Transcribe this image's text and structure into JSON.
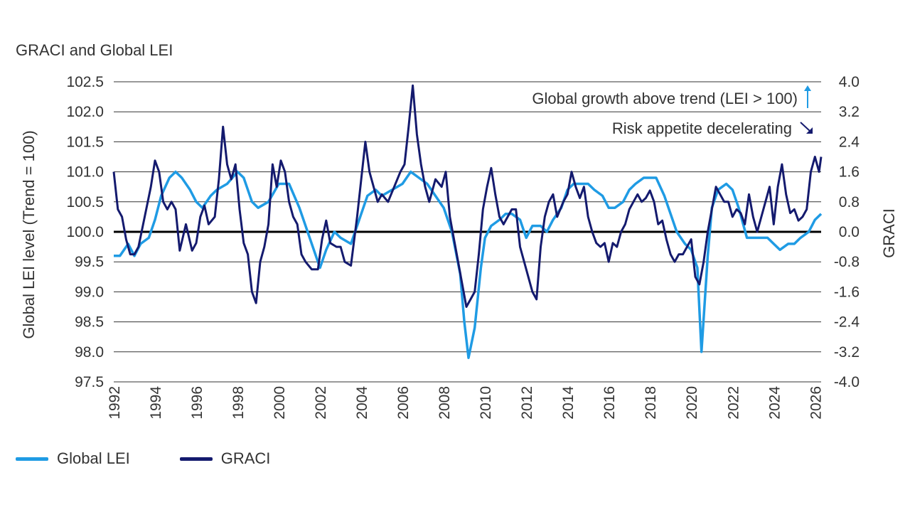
{
  "colors": {
    "lei": "#1f9be4",
    "graci": "#141a6e",
    "grid": "#333333",
    "zero": "#000000"
  },
  "chart_data": {
    "type": "line",
    "title": "GRACI and Global LEI",
    "ylabel_left": "Global LEI level  (Trend = 100)",
    "ylabel_right": "GRACI",
    "xlim": [
      1992,
      2026.3
    ],
    "ylim_left": [
      97.5,
      102.5
    ],
    "ylim_right": [
      -4.0,
      4.0
    ],
    "x_ticks": [
      "1992",
      "1994",
      "1996",
      "1998",
      "2000",
      "2002",
      "2004",
      "2006",
      "2008",
      "2010",
      "2012",
      "2014",
      "2016",
      "2018",
      "2020",
      "2022",
      "2024",
      "2026"
    ],
    "y_ticks_left": [
      "97.5",
      "98.0",
      "98.5",
      "99.0",
      "99.5",
      "100.0",
      "100.5",
      "101.0",
      "101.5",
      "102.0",
      "102.5"
    ],
    "y_ticks_right": [
      "-4.0",
      "-3.2",
      "-2.4",
      "-1.6",
      "-0.8",
      "0.0",
      "0.8",
      "1.6",
      "2.4",
      "3.2",
      "4.0"
    ],
    "annotations": [
      {
        "text": "Global growth above trend (LEI > 100)",
        "arrow": "up",
        "color": "#1f9be4"
      },
      {
        "text": "Risk appetite decelerating",
        "arrow": "down-right",
        "color": "#141a6e"
      }
    ],
    "legend": "bottom-left",
    "series": [
      {
        "name": "Global LEI",
        "axis": "left",
        "points": [
          [
            1992.0,
            99.6
          ],
          [
            1992.3,
            99.6
          ],
          [
            1992.7,
            99.8
          ],
          [
            1993.0,
            99.6
          ],
          [
            1993.3,
            99.8
          ],
          [
            1993.7,
            99.9
          ],
          [
            1994.0,
            100.2
          ],
          [
            1994.3,
            100.6
          ],
          [
            1994.7,
            100.9
          ],
          [
            1995.0,
            101.0
          ],
          [
            1995.3,
            100.9
          ],
          [
            1995.7,
            100.7
          ],
          [
            1996.0,
            100.5
          ],
          [
            1996.3,
            100.4
          ],
          [
            1996.7,
            100.6
          ],
          [
            1997.0,
            100.7
          ],
          [
            1997.5,
            100.8
          ],
          [
            1998.0,
            101.0
          ],
          [
            1998.3,
            100.9
          ],
          [
            1998.7,
            100.5
          ],
          [
            1999.0,
            100.4
          ],
          [
            1999.5,
            100.5
          ],
          [
            2000.0,
            100.8
          ],
          [
            2000.5,
            100.8
          ],
          [
            2001.0,
            100.4
          ],
          [
            2001.5,
            99.9
          ],
          [
            2002.0,
            99.4
          ],
          [
            2002.3,
            99.7
          ],
          [
            2002.7,
            100.0
          ],
          [
            2003.0,
            99.9
          ],
          [
            2003.5,
            99.8
          ],
          [
            2004.0,
            100.3
          ],
          [
            2004.3,
            100.6
          ],
          [
            2004.7,
            100.7
          ],
          [
            2005.0,
            100.6
          ],
          [
            2005.5,
            100.7
          ],
          [
            2006.0,
            100.8
          ],
          [
            2006.4,
            101.0
          ],
          [
            2006.8,
            100.9
          ],
          [
            2007.2,
            100.8
          ],
          [
            2007.6,
            100.6
          ],
          [
            2008.0,
            100.4
          ],
          [
            2008.4,
            100.0
          ],
          [
            2008.8,
            99.3
          ],
          [
            2009.0,
            98.5
          ],
          [
            2009.2,
            97.9
          ],
          [
            2009.5,
            98.4
          ],
          [
            2009.8,
            99.4
          ],
          [
            2010.0,
            99.9
          ],
          [
            2010.3,
            100.1
          ],
          [
            2010.7,
            100.2
          ],
          [
            2011.0,
            100.3
          ],
          [
            2011.3,
            100.3
          ],
          [
            2011.7,
            100.2
          ],
          [
            2012.0,
            99.9
          ],
          [
            2012.3,
            100.1
          ],
          [
            2012.7,
            100.1
          ],
          [
            2013.0,
            100.0
          ],
          [
            2013.3,
            100.2
          ],
          [
            2013.7,
            100.4
          ],
          [
            2014.0,
            100.7
          ],
          [
            2014.3,
            100.8
          ],
          [
            2014.7,
            100.8
          ],
          [
            2015.0,
            100.8
          ],
          [
            2015.3,
            100.7
          ],
          [
            2015.7,
            100.6
          ],
          [
            2016.0,
            100.4
          ],
          [
            2016.3,
            100.4
          ],
          [
            2016.7,
            100.5
          ],
          [
            2017.0,
            100.7
          ],
          [
            2017.3,
            100.8
          ],
          [
            2017.7,
            100.9
          ],
          [
            2018.0,
            100.9
          ],
          [
            2018.3,
            100.9
          ],
          [
            2018.7,
            100.6
          ],
          [
            2019.0,
            100.3
          ],
          [
            2019.3,
            100.0
          ],
          [
            2019.7,
            99.8
          ],
          [
            2020.0,
            99.7
          ],
          [
            2020.3,
            99.4
          ],
          [
            2020.5,
            98.0
          ],
          [
            2020.8,
            99.6
          ],
          [
            2021.0,
            100.4
          ],
          [
            2021.3,
            100.7
          ],
          [
            2021.7,
            100.8
          ],
          [
            2022.0,
            100.7
          ],
          [
            2022.3,
            100.4
          ],
          [
            2022.7,
            99.9
          ],
          [
            2023.0,
            99.9
          ],
          [
            2023.3,
            99.9
          ],
          [
            2023.7,
            99.9
          ],
          [
            2024.0,
            99.8
          ],
          [
            2024.3,
            99.7
          ],
          [
            2024.7,
            99.8
          ],
          [
            2025.0,
            99.8
          ],
          [
            2025.3,
            99.9
          ],
          [
            2025.7,
            100.0
          ],
          [
            2026.0,
            100.2
          ],
          [
            2026.3,
            100.3
          ]
        ]
      },
      {
        "name": "GRACI",
        "axis": "right",
        "points": [
          [
            1992.0,
            1.6
          ],
          [
            1992.2,
            0.6
          ],
          [
            1992.4,
            0.4
          ],
          [
            1992.6,
            -0.2
          ],
          [
            1992.8,
            -0.6
          ],
          [
            1993.0,
            -0.6
          ],
          [
            1993.2,
            -0.4
          ],
          [
            1993.5,
            0.4
          ],
          [
            1993.8,
            1.2
          ],
          [
            1994.0,
            1.9
          ],
          [
            1994.2,
            1.6
          ],
          [
            1994.4,
            0.8
          ],
          [
            1994.6,
            0.6
          ],
          [
            1994.8,
            0.8
          ],
          [
            1995.0,
            0.6
          ],
          [
            1995.2,
            -0.5
          ],
          [
            1995.5,
            0.2
          ],
          [
            1995.8,
            -0.5
          ],
          [
            1996.0,
            -0.3
          ],
          [
            1996.2,
            0.4
          ],
          [
            1996.4,
            0.7
          ],
          [
            1996.6,
            0.2
          ],
          [
            1996.9,
            0.4
          ],
          [
            1997.1,
            1.4
          ],
          [
            1997.3,
            2.8
          ],
          [
            1997.5,
            1.8
          ],
          [
            1997.7,
            1.4
          ],
          [
            1997.9,
            1.8
          ],
          [
            1998.1,
            0.6
          ],
          [
            1998.3,
            -0.3
          ],
          [
            1998.5,
            -0.6
          ],
          [
            1998.7,
            -1.6
          ],
          [
            1998.9,
            -1.9
          ],
          [
            1999.1,
            -0.8
          ],
          [
            1999.3,
            -0.4
          ],
          [
            1999.5,
            0.2
          ],
          [
            1999.7,
            1.8
          ],
          [
            1999.9,
            1.2
          ],
          [
            2000.1,
            1.9
          ],
          [
            2000.3,
            1.6
          ],
          [
            2000.5,
            0.8
          ],
          [
            2000.7,
            0.4
          ],
          [
            2000.9,
            0.2
          ],
          [
            2001.1,
            -0.6
          ],
          [
            2001.3,
            -0.8
          ],
          [
            2001.6,
            -1.0
          ],
          [
            2001.9,
            -1.0
          ],
          [
            2002.1,
            -0.2
          ],
          [
            2002.3,
            0.3
          ],
          [
            2002.5,
            -0.3
          ],
          [
            2002.8,
            -0.4
          ],
          [
            2003.0,
            -0.4
          ],
          [
            2003.2,
            -0.8
          ],
          [
            2003.5,
            -0.9
          ],
          [
            2003.8,
            0.4
          ],
          [
            2004.0,
            1.4
          ],
          [
            2004.2,
            2.4
          ],
          [
            2004.4,
            1.6
          ],
          [
            2004.6,
            1.2
          ],
          [
            2004.8,
            0.8
          ],
          [
            2005.0,
            1.0
          ],
          [
            2005.3,
            0.8
          ],
          [
            2005.6,
            1.2
          ],
          [
            2005.9,
            1.6
          ],
          [
            2006.1,
            1.8
          ],
          [
            2006.3,
            2.8
          ],
          [
            2006.5,
            3.9
          ],
          [
            2006.7,
            2.6
          ],
          [
            2006.9,
            1.8
          ],
          [
            2007.1,
            1.2
          ],
          [
            2007.3,
            0.8
          ],
          [
            2007.6,
            1.4
          ],
          [
            2007.9,
            1.2
          ],
          [
            2008.1,
            1.6
          ],
          [
            2008.3,
            0.4
          ],
          [
            2008.5,
            -0.2
          ],
          [
            2008.7,
            -0.8
          ],
          [
            2008.9,
            -1.4
          ],
          [
            2009.1,
            -2.0
          ],
          [
            2009.3,
            -1.8
          ],
          [
            2009.5,
            -1.6
          ],
          [
            2009.7,
            -0.6
          ],
          [
            2009.9,
            0.6
          ],
          [
            2010.1,
            1.2
          ],
          [
            2010.3,
            1.7
          ],
          [
            2010.5,
            1.0
          ],
          [
            2010.7,
            0.4
          ],
          [
            2010.9,
            0.2
          ],
          [
            2011.1,
            0.4
          ],
          [
            2011.3,
            0.6
          ],
          [
            2011.5,
            0.6
          ],
          [
            2011.7,
            -0.4
          ],
          [
            2011.9,
            -0.8
          ],
          [
            2012.1,
            -1.2
          ],
          [
            2012.3,
            -1.6
          ],
          [
            2012.5,
            -1.8
          ],
          [
            2012.7,
            -0.4
          ],
          [
            2012.9,
            0.4
          ],
          [
            2013.1,
            0.8
          ],
          [
            2013.3,
            1.0
          ],
          [
            2013.5,
            0.4
          ],
          [
            2013.8,
            0.8
          ],
          [
            2014.0,
            1.0
          ],
          [
            2014.2,
            1.6
          ],
          [
            2014.4,
            1.2
          ],
          [
            2014.6,
            0.9
          ],
          [
            2014.8,
            1.2
          ],
          [
            2015.0,
            0.4
          ],
          [
            2015.2,
            0.0
          ],
          [
            2015.4,
            -0.3
          ],
          [
            2015.6,
            -0.4
          ],
          [
            2015.8,
            -0.3
          ],
          [
            2016.0,
            -0.8
          ],
          [
            2016.2,
            -0.3
          ],
          [
            2016.4,
            -0.4
          ],
          [
            2016.6,
            0.0
          ],
          [
            2016.8,
            0.2
          ],
          [
            2017.0,
            0.6
          ],
          [
            2017.2,
            0.8
          ],
          [
            2017.4,
            1.0
          ],
          [
            2017.6,
            0.8
          ],
          [
            2017.8,
            0.9
          ],
          [
            2018.0,
            1.1
          ],
          [
            2018.2,
            0.8
          ],
          [
            2018.4,
            0.2
          ],
          [
            2018.6,
            0.3
          ],
          [
            2018.8,
            -0.2
          ],
          [
            2019.0,
            -0.6
          ],
          [
            2019.2,
            -0.8
          ],
          [
            2019.4,
            -0.6
          ],
          [
            2019.6,
            -0.6
          ],
          [
            2019.8,
            -0.4
          ],
          [
            2020.0,
            -0.2
          ],
          [
            2020.2,
            -1.2
          ],
          [
            2020.4,
            -1.4
          ],
          [
            2020.6,
            -0.8
          ],
          [
            2020.8,
            0.0
          ],
          [
            2021.0,
            0.6
          ],
          [
            2021.2,
            1.2
          ],
          [
            2021.4,
            1.0
          ],
          [
            2021.6,
            0.8
          ],
          [
            2021.8,
            0.8
          ],
          [
            2022.0,
            0.4
          ],
          [
            2022.2,
            0.6
          ],
          [
            2022.4,
            0.5
          ],
          [
            2022.6,
            0.2
          ],
          [
            2022.8,
            1.0
          ],
          [
            2023.0,
            0.4
          ],
          [
            2023.2,
            0.0
          ],
          [
            2023.4,
            0.4
          ],
          [
            2023.6,
            0.8
          ],
          [
            2023.8,
            1.2
          ],
          [
            2024.0,
            0.2
          ],
          [
            2024.2,
            1.2
          ],
          [
            2024.4,
            1.8
          ],
          [
            2024.6,
            1.0
          ],
          [
            2024.8,
            0.5
          ],
          [
            2025.0,
            0.6
          ],
          [
            2025.2,
            0.3
          ],
          [
            2025.4,
            0.4
          ],
          [
            2025.6,
            0.6
          ],
          [
            2025.8,
            1.6
          ],
          [
            2026.0,
            2.0
          ],
          [
            2026.2,
            1.6
          ],
          [
            2026.3,
            2.0
          ]
        ]
      }
    ]
  }
}
